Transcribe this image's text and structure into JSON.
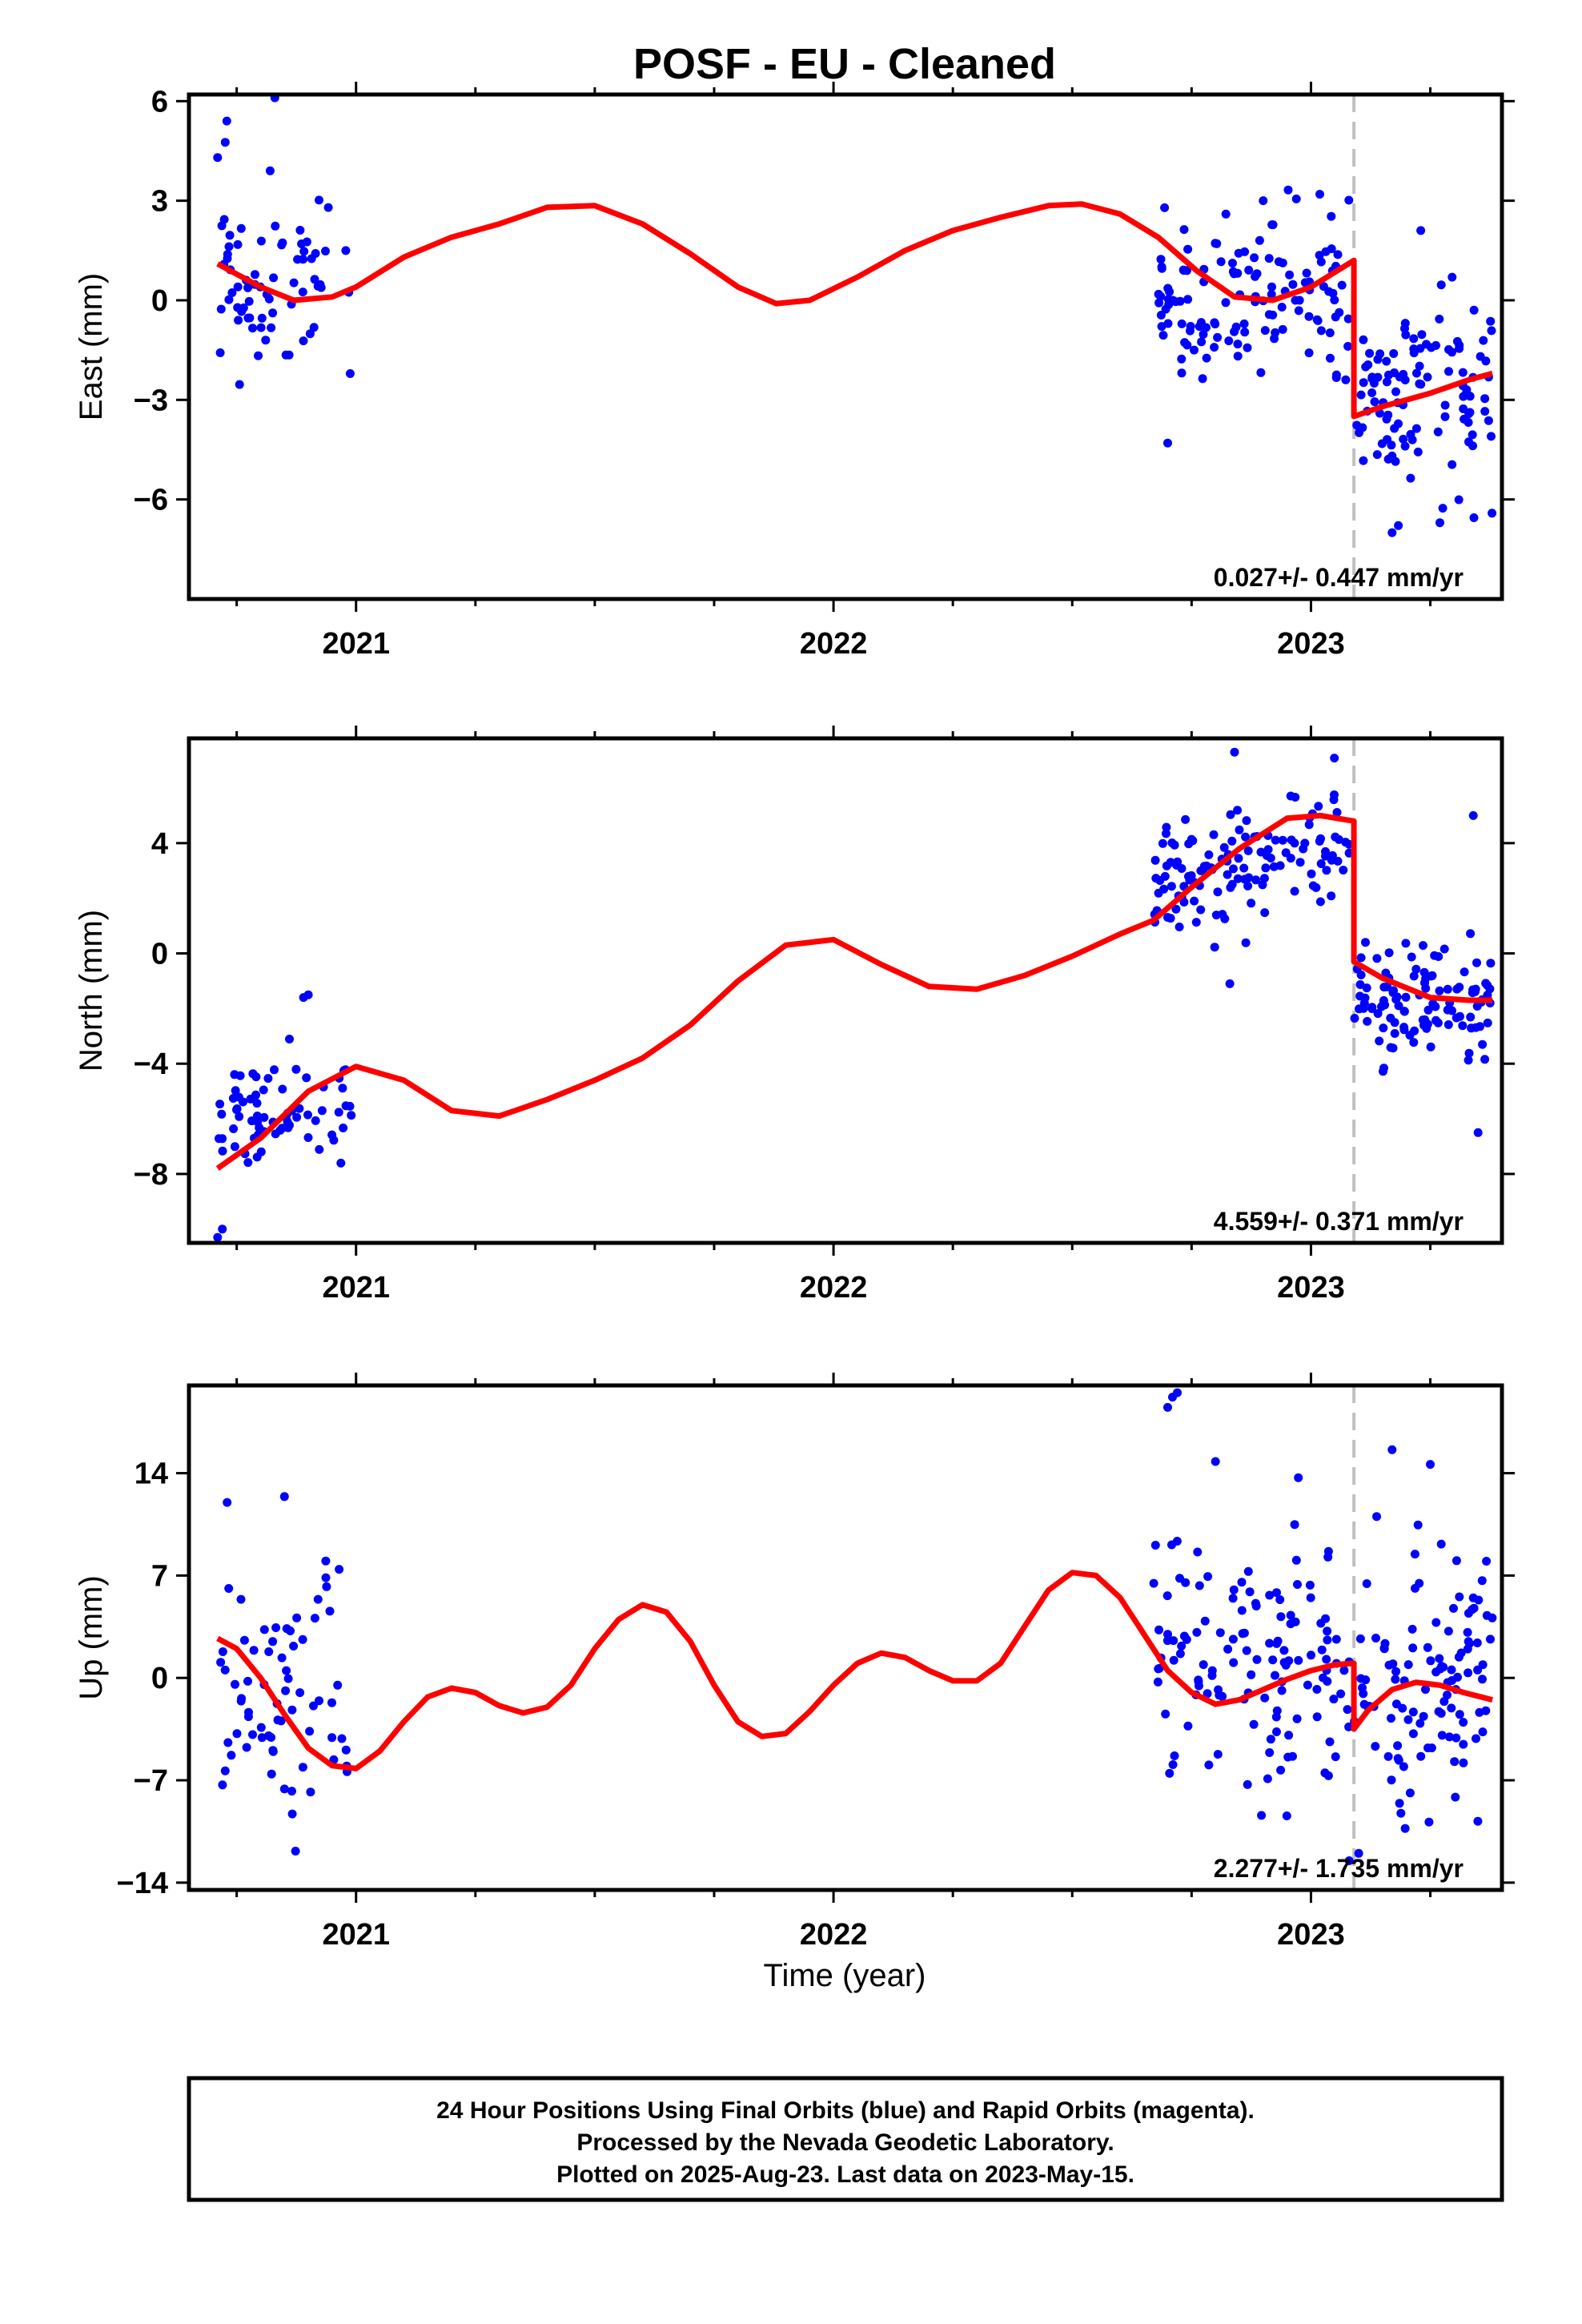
{
  "title": "POSF  - EU - Cleaned",
  "xlabel": "Time (year)",
  "footer": {
    "lines": [
      "24 Hour Positions Using Final Orbits (blue) and Rapid Orbits (magenta).",
      "Processed by the Nevada Geodetic Laboratory.",
      "Plotted on 2025-Aug-23. Last data on 2023-May-15."
    ]
  },
  "colors": {
    "points": "#0000ff",
    "model": "#ff0000",
    "step_line": "#c0c0c0",
    "frame": "#000000"
  },
  "chart_data": [
    {
      "type": "scatter",
      "ylabel": "East (mm)",
      "rate": "0.027+/- 0.447 mm/yr",
      "xlim": [
        2020.65,
        2023.4
      ],
      "ylim": [
        -9,
        6.2
      ],
      "x_ticks": [
        2021,
        2022,
        2023
      ],
      "x_tick_labels": [
        "2021",
        "2022",
        "2023"
      ],
      "y_ticks": [
        6,
        3,
        0,
        -3,
        -6
      ],
      "y_tick_labels": [
        "6",
        "3",
        "0",
        "−3",
        "−6"
      ],
      "step_epoch": 2023.09,
      "model": {
        "x": [
          2020.71,
          2020.8,
          2020.87,
          2020.95,
          2021.0,
          2021.1,
          2021.2,
          2021.3,
          2021.4,
          2021.5,
          2021.6,
          2021.7,
          2021.8,
          2021.88,
          2021.95,
          2022.05,
          2022.15,
          2022.25,
          2022.35,
          2022.45,
          2022.52,
          2022.6,
          2022.68,
          2022.76,
          2022.84,
          2022.92,
          2023.0,
          2023.09,
          2023.09,
          2023.15,
          2023.25,
          2023.33,
          2023.38
        ],
        "y": [
          1.1,
          0.4,
          0.0,
          0.1,
          0.4,
          1.3,
          1.9,
          2.3,
          2.8,
          2.85,
          2.3,
          1.4,
          0.4,
          -0.1,
          0.0,
          0.7,
          1.5,
          2.1,
          2.5,
          2.85,
          2.9,
          2.6,
          1.9,
          0.9,
          0.1,
          0.0,
          0.4,
          1.2,
          -3.5,
          -3.2,
          -2.8,
          -2.4,
          -2.2
        ]
      },
      "segments": [
        {
          "start": 2020.71,
          "end": 2020.99,
          "center": 0.6,
          "spread": 1.3,
          "trend": -5.0,
          "count": 70,
          "seed": 11
        },
        {
          "start": 2022.67,
          "end": 2023.08,
          "center": 0.3,
          "spread": 1.2,
          "trend": 0.0,
          "count": 130,
          "seed": 23
        },
        {
          "start": 2023.09,
          "end": 2023.38,
          "center": -3.0,
          "spread": 1.5,
          "trend": 3.0,
          "count": 110,
          "seed": 37
        }
      ],
      "extra_points": {
        "x": [
          2020.83,
          2020.82,
          2020.71,
          2022.7,
          2022.9,
          2023.23,
          2023.27,
          2023.17
        ],
        "y": [
          6.1,
          3.9,
          4.3,
          -4.3,
          3.0,
          2.1,
          -6.7,
          -7.0
        ]
      }
    },
    {
      "type": "scatter",
      "ylabel": "North (mm)",
      "rate": "4.559+/- 0.371 mm/yr",
      "xlim": [
        2020.65,
        2023.4
      ],
      "ylim": [
        -10.5,
        7.8
      ],
      "x_ticks": [
        2021,
        2022,
        2023
      ],
      "x_tick_labels": [
        "2021",
        "2022",
        "2023"
      ],
      "y_ticks": [
        4,
        0,
        -4,
        -8
      ],
      "y_tick_labels": [
        "4",
        "0",
        "−4",
        "−8"
      ],
      "step_epoch": 2023.09,
      "model": {
        "x": [
          2020.71,
          2020.8,
          2020.9,
          2021.0,
          2021.1,
          2021.2,
          2021.3,
          2021.4,
          2021.5,
          2021.6,
          2021.7,
          2021.8,
          2021.9,
          2022.0,
          2022.1,
          2022.2,
          2022.3,
          2022.4,
          2022.5,
          2022.6,
          2022.67,
          2022.75,
          2022.85,
          2022.95,
          2023.02,
          2023.09,
          2023.09,
          2023.15,
          2023.25,
          2023.33,
          2023.38
        ],
        "y": [
          -7.8,
          -6.7,
          -5.0,
          -4.1,
          -4.6,
          -5.7,
          -5.9,
          -5.3,
          -4.6,
          -3.8,
          -2.6,
          -1.0,
          0.3,
          0.5,
          -0.4,
          -1.2,
          -1.3,
          -0.8,
          -0.1,
          0.7,
          1.2,
          2.4,
          3.8,
          4.9,
          5.0,
          4.8,
          -0.3,
          -0.9,
          -1.6,
          -1.7,
          -1.7
        ]
      },
      "segments": [
        {
          "start": 2020.71,
          "end": 2020.99,
          "center": -5.8,
          "spread": 0.9,
          "trend": 12.0,
          "count": 70,
          "seed": 51
        },
        {
          "start": 2022.67,
          "end": 2023.08,
          "center": 3.3,
          "spread": 1.1,
          "trend": 9.0,
          "count": 130,
          "seed": 63
        },
        {
          "start": 2023.09,
          "end": 2023.38,
          "center": -1.6,
          "spread": 1.2,
          "trend": -4.0,
          "count": 110,
          "seed": 77
        }
      ],
      "extra_points": {
        "x": [
          2020.71,
          2020.72,
          2022.84,
          2022.83,
          2023.34,
          2023.35,
          2020.9,
          2020.89
        ],
        "y": [
          -10.3,
          -10.0,
          7.3,
          -1.1,
          5.0,
          -6.5,
          -1.5,
          -1.6
        ]
      }
    },
    {
      "type": "scatter",
      "ylabel": "Up (mm)",
      "rate": "2.277+/- 1.735 mm/yr",
      "xlim": [
        2020.65,
        2023.4
      ],
      "ylim": [
        -14.5,
        20
      ],
      "x_ticks": [
        2021,
        2022,
        2023
      ],
      "x_tick_labels": [
        "2021",
        "2022",
        "2023"
      ],
      "y_ticks": [
        14,
        7,
        0,
        -7,
        -14
      ],
      "y_tick_labels": [
        "14",
        "7",
        "0",
        "−7",
        "−14"
      ],
      "step_epoch": 2023.09,
      "model": {
        "x": [
          2020.71,
          2020.75,
          2020.8,
          2020.85,
          2020.9,
          2020.95,
          2021.0,
          2021.05,
          2021.1,
          2021.15,
          2021.2,
          2021.25,
          2021.3,
          2021.35,
          2021.4,
          2021.45,
          2021.5,
          2021.55,
          2021.6,
          2021.65,
          2021.7,
          2021.75,
          2021.8,
          2021.85,
          2021.9,
          2021.95,
          2022.0,
          2022.05,
          2022.1,
          2022.15,
          2022.2,
          2022.25,
          2022.3,
          2022.35,
          2022.4,
          2022.45,
          2022.5,
          2022.55,
          2022.6,
          2022.65,
          2022.7,
          2022.75,
          2022.8,
          2022.85,
          2022.9,
          2022.95,
          2023.0,
          2023.05,
          2023.09,
          2023.09,
          2023.12,
          2023.17,
          2023.22,
          2023.27,
          2023.32,
          2023.38
        ],
        "y": [
          2.7,
          2.0,
          0.0,
          -2.5,
          -4.8,
          -6.0,
          -6.2,
          -5.0,
          -3.0,
          -1.3,
          -0.7,
          -1.0,
          -1.9,
          -2.4,
          -2.0,
          -0.5,
          2.0,
          4.0,
          5.0,
          4.5,
          2.5,
          -0.5,
          -3.0,
          -4.0,
          -3.8,
          -2.3,
          -0.5,
          1.0,
          1.7,
          1.4,
          0.5,
          -0.2,
          -0.2,
          1.0,
          3.5,
          6.0,
          7.2,
          7.0,
          5.5,
          3.0,
          0.5,
          -1.0,
          -1.8,
          -1.5,
          -0.8,
          -0.1,
          0.5,
          0.9,
          1.0,
          -3.5,
          -2.2,
          -0.8,
          -0.3,
          -0.5,
          -1.0,
          -1.5
        ]
      },
      "segments": [
        {
          "start": 2020.71,
          "end": 2020.99,
          "center": -2.0,
          "spread": 4.5,
          "trend": -20.0,
          "count": 70,
          "seed": 91
        },
        {
          "start": 2022.67,
          "end": 2023.08,
          "center": 1.0,
          "spread": 4.8,
          "trend": -20.0,
          "count": 130,
          "seed": 103
        },
        {
          "start": 2023.09,
          "end": 2023.38,
          "center": -1.0,
          "spread": 4.5,
          "trend": 0.0,
          "count": 110,
          "seed": 117
        }
      ],
      "extra_points": {
        "x": [
          2022.71,
          2022.72,
          2022.7,
          2022.8,
          2023.17,
          2023.25,
          2020.73,
          2020.85,
          2023.08,
          2023.1
        ],
        "y": [
          19.2,
          19.5,
          18.5,
          14.8,
          15.6,
          14.6,
          12.0,
          12.4,
          -12.5,
          -12.0
        ]
      }
    }
  ]
}
